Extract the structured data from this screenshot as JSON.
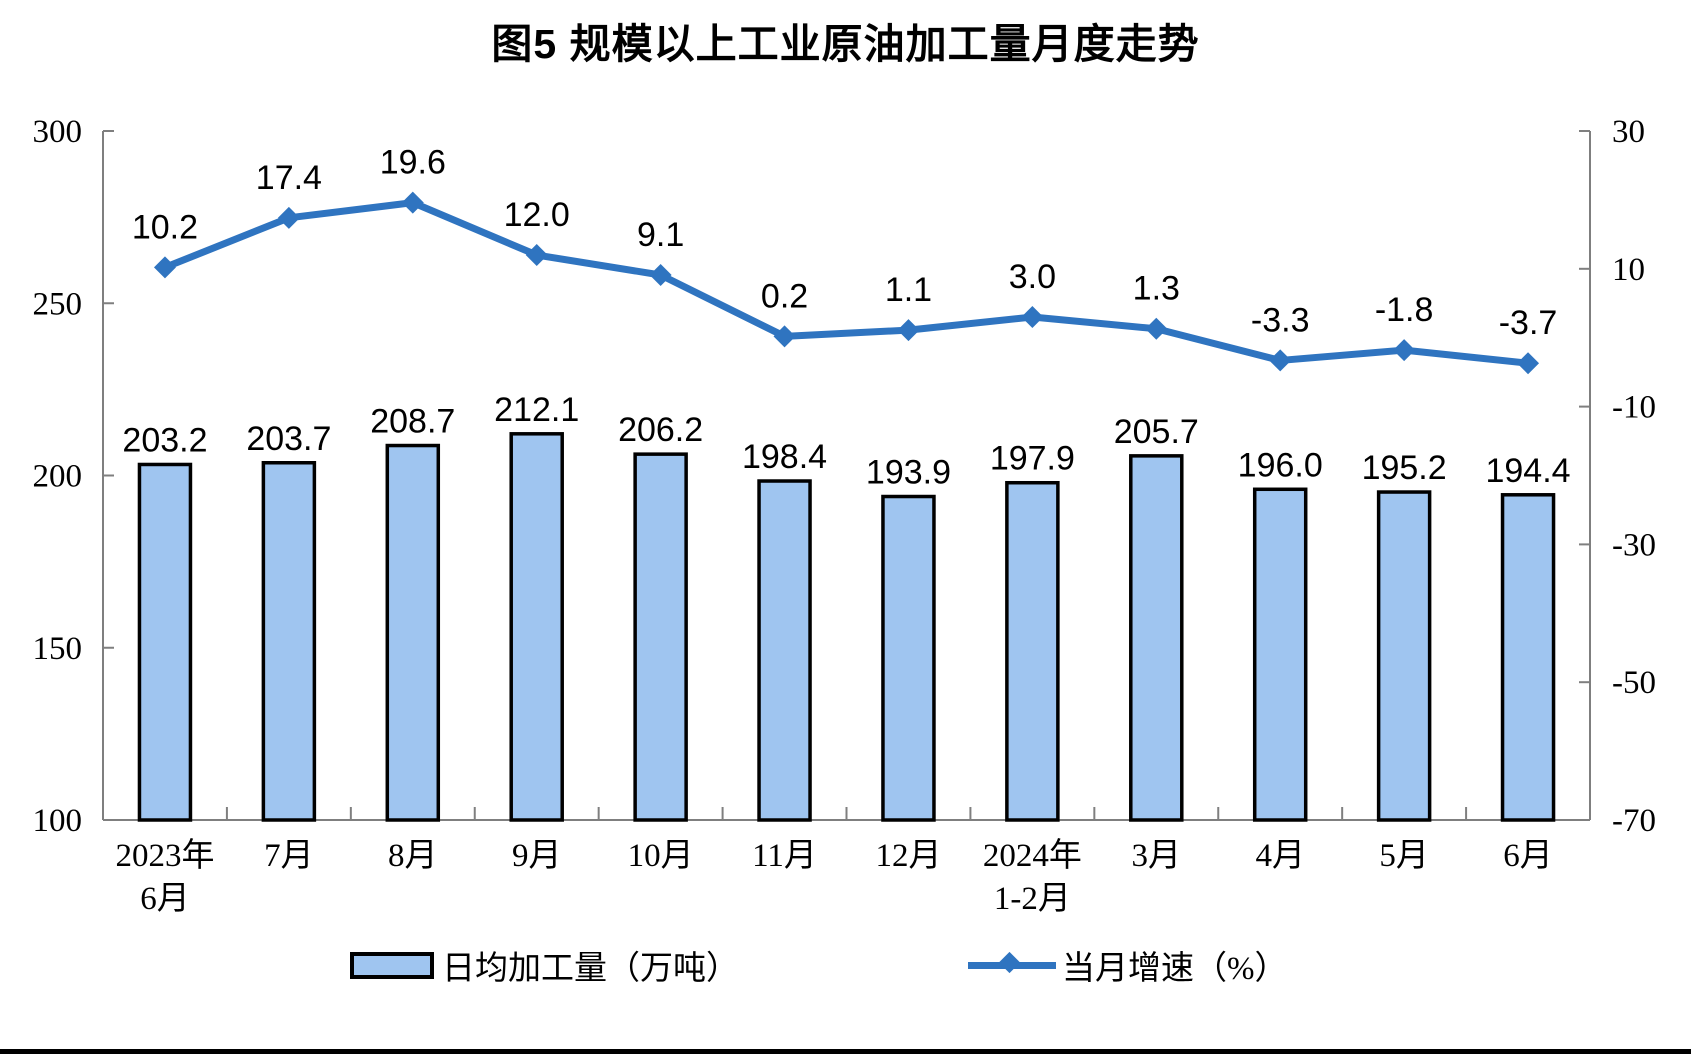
{
  "title": "图5  规模以上工业原油加工量月度走势",
  "legend": {
    "bar_label": "日均加工量（万吨）",
    "line_label": "当月增速（%）"
  },
  "colors": {
    "bar_fill": "#9FC5F0",
    "bar_border": "#000000",
    "line": "#2F74C0",
    "axis": "#7F7F7F",
    "text": "#000000"
  },
  "chart_data": {
    "type": "bar+line combo",
    "title": "图5  规模以上工业原油加工量月度走势",
    "categories": [
      "2023年\n6月",
      "7月",
      "8月",
      "9月",
      "10月",
      "11月",
      "12月",
      "2024年\n1-2月",
      "3月",
      "4月",
      "5月",
      "6月"
    ],
    "series": [
      {
        "name": "日均加工量（万吨）",
        "type": "bar",
        "axis": "left",
        "values": [
          203.2,
          203.7,
          208.7,
          212.1,
          206.2,
          198.4,
          193.9,
          197.9,
          205.7,
          196.0,
          195.2,
          194.4
        ]
      },
      {
        "name": "当月增速（%）",
        "type": "line",
        "axis": "right",
        "values": [
          10.2,
          17.4,
          19.6,
          12.0,
          9.1,
          0.2,
          1.1,
          3.0,
          1.3,
          -3.3,
          -1.8,
          -3.7
        ]
      }
    ],
    "left_axis": {
      "min": 100,
      "max": 300,
      "step": 50,
      "tick_labels": [
        "100",
        "150",
        "200",
        "250",
        "300"
      ]
    },
    "right_axis": {
      "min": -70,
      "max": 30,
      "step": 20,
      "tick_labels": [
        "-70",
        "-50",
        "-30",
        "-10",
        "10",
        "30"
      ]
    },
    "grid": false,
    "legend_position": "bottom",
    "data_labels": true
  }
}
